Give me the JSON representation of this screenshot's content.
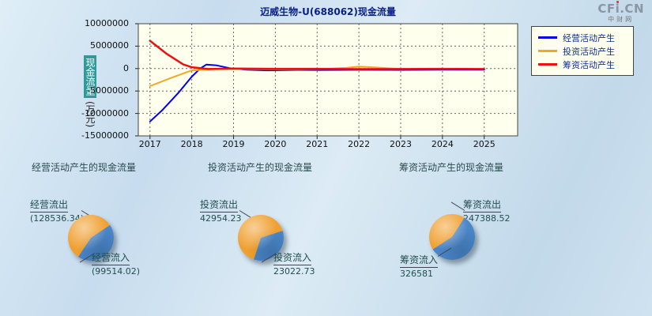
{
  "logo": {
    "text": "CFi.CN",
    "sub": "中财网"
  },
  "chart_data": [
    {
      "id": "cashflow-line",
      "type": "line",
      "title": "迈威生物-U(688062)现金流量",
      "ylabel": "现金流量 (万元)",
      "ylabel_main": "现金流量",
      "ylabel_unit": "(万元)",
      "ylim": [
        -15000000,
        10000000
      ],
      "yticks": [
        10000000,
        5000000,
        0,
        -5000000,
        -10000000,
        -15000000
      ],
      "xticks": [
        2017,
        2018,
        2019,
        2020,
        2021,
        2022,
        2023,
        2024,
        2025
      ],
      "xlim": [
        2016.72,
        2025.8
      ],
      "grid": true,
      "legend_position": "top-right",
      "series": [
        {
          "name": "经营活动产生",
          "color": "#0000ee",
          "width": 2,
          "x": [
            2017,
            2017.3,
            2017.7,
            2018.0,
            2018.2,
            2018.35,
            2018.6,
            2018.9,
            2019.3,
            2019.8,
            2020.5,
            2021,
            2022,
            2023,
            2024,
            2025
          ],
          "values": [
            -11800000,
            -9200000,
            -5200000,
            -1800000,
            0,
            900000,
            700000,
            100000,
            -250000,
            -400000,
            -300000,
            -320000,
            -280000,
            -300000,
            -250000,
            -260000
          ]
        },
        {
          "name": "投资活动产生",
          "color": "#f5a623",
          "width": 2,
          "x": [
            2017,
            2017.5,
            2018,
            2018.5,
            2019,
            2020,
            2021,
            2021.7,
            2022,
            2022.4,
            2023,
            2024,
            2025
          ],
          "values": [
            -3900000,
            -2100000,
            -400000,
            -150000,
            -100000,
            -150000,
            -120000,
            150000,
            450000,
            250000,
            -80000,
            -100000,
            -90000
          ]
        },
        {
          "name": "筹资活动产生",
          "color": "#ee1111",
          "width": 2.5,
          "x": [
            2017,
            2017.4,
            2017.8,
            2018,
            2018.4,
            2019,
            2020,
            2021,
            2022,
            2023,
            2024,
            2025
          ],
          "values": [
            6200000,
            3300000,
            900000,
            300000,
            -100000,
            0,
            -60000,
            -60000,
            -120000,
            -100000,
            -60000,
            -110000
          ]
        }
      ]
    },
    {
      "id": "pie-operating",
      "type": "pie",
      "title": "经营活动产生的现金流量",
      "slices": [
        {
          "label": "经营流出",
          "value": 128536.34,
          "value_text": "(128536.34)",
          "color": "#f0a030",
          "label_pos": "top-left"
        },
        {
          "label": "经营流入",
          "value": 99514.02,
          "value_text": "(99514.02)",
          "color": "#4a86c8",
          "label_pos": "bottom-right"
        }
      ]
    },
    {
      "id": "pie-investing",
      "type": "pie",
      "title": "投资活动产生的现金流量",
      "slices": [
        {
          "label": "投资流出",
          "value": 42954.23,
          "value_text": "42954.23",
          "color": "#f0a030",
          "label_pos": "top-left"
        },
        {
          "label": "投资流入",
          "value": 23022.73,
          "value_text": "23022.73",
          "color": "#4a86c8",
          "label_pos": "bottom-right"
        }
      ]
    },
    {
      "id": "pie-financing",
      "type": "pie",
      "title": "筹资活动产生的现金流量",
      "slices": [
        {
          "label": "筹资流出",
          "value": 247388.52,
          "value_text": "247388.52",
          "color": "#f0a030",
          "label_pos": "top-right"
        },
        {
          "label": "筹资流入",
          "value": 326581,
          "value_text": "326581",
          "color": "#4a86c8",
          "label_pos": "bottom-left"
        }
      ]
    }
  ]
}
